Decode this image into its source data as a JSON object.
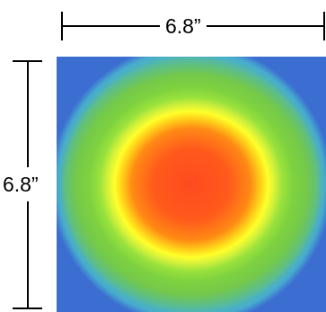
{
  "dimensions": {
    "width_label": "6.8”",
    "height_label": "6.8”"
  },
  "heatmap": {
    "description_colors": {
      "center": "#ff4a1f",
      "mid_hot": "#ff8a14",
      "warm": "#ffff2a",
      "cool": "#7ed23f",
      "cold": "#4fb6b4",
      "edge": "#3d6fd0"
    }
  }
}
